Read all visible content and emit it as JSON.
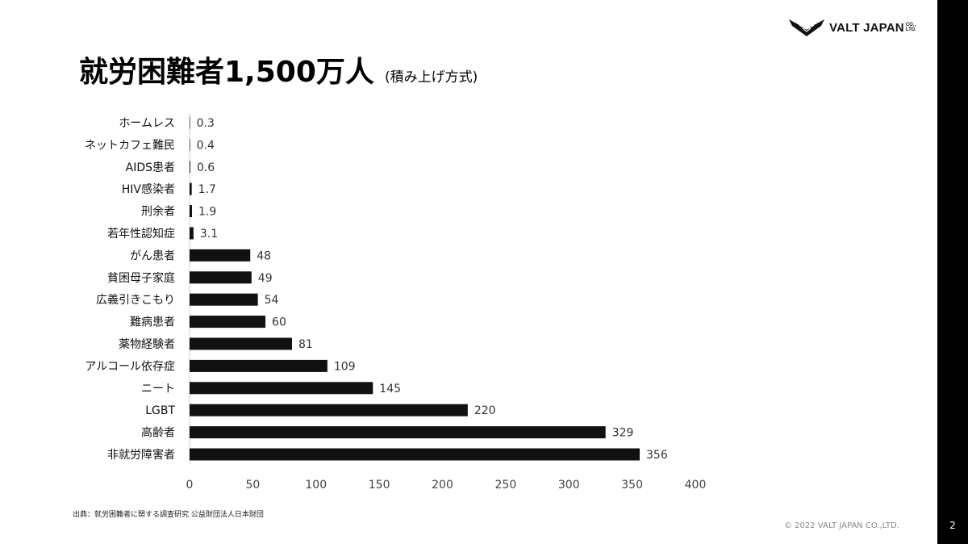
{
  "header": {
    "logo_text": "VALT JAPAN",
    "logo_co": "CO.,",
    "logo_ltd": "LTD."
  },
  "title": {
    "main": "就労困難者1,500万人",
    "sub": "(積み上げ方式)"
  },
  "chart_data": {
    "type": "bar",
    "orientation": "horizontal",
    "title": "",
    "xlabel": "",
    "ylabel": "",
    "xlim": [
      0,
      400
    ],
    "x_ticks": [
      0,
      50,
      100,
      150,
      200,
      250,
      300,
      350,
      400
    ],
    "grid": false,
    "categories": [
      "ホームレス",
      "ネットカフェ難民",
      "AIDS患者",
      "HIV感染者",
      "刑余者",
      "若年性認知症",
      "がん患者",
      "貧困母子家庭",
      "広義引きこもり",
      "難病患者",
      "薬物経験者",
      "アルコール依存症",
      "ニート",
      "LGBT",
      "高齢者",
      "非就労障害者"
    ],
    "values": [
      0.3,
      0.4,
      0.6,
      1.7,
      1.9,
      3.1,
      48,
      49,
      54,
      60,
      81,
      109,
      145,
      220,
      329,
      356
    ],
    "value_labels": [
      "0.3",
      "0.4",
      "0.6",
      "1.7",
      "1.9",
      "3.1",
      "48",
      "49",
      "54",
      "60",
      "81",
      "109",
      "145",
      "220",
      "329",
      "356"
    ],
    "bar_color": "#111111"
  },
  "footer": {
    "source": "出典：就労困難者に関する調査研究 公益財団法人日本財団",
    "copyright": "© 2022 VALT JAPAN CO.,LTD.",
    "page_number": "2"
  }
}
